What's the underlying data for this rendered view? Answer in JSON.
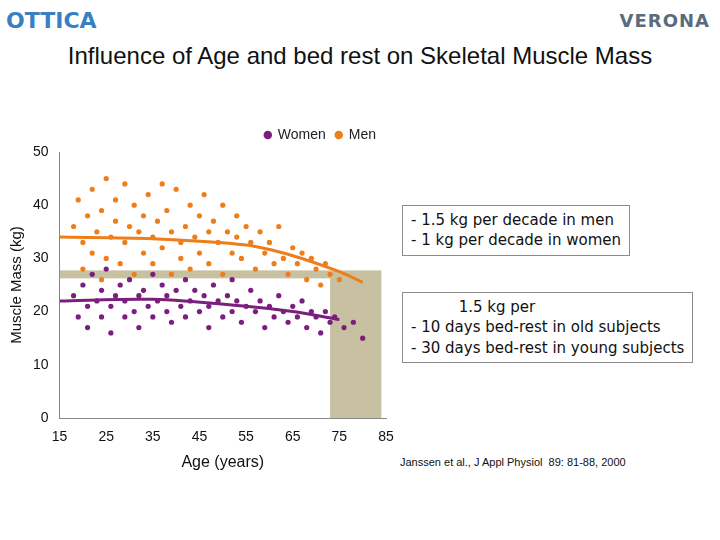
{
  "chart_data": {
    "type": "scatter",
    "title": "Influence of Age and bed rest on Skeletal Muscle Mass",
    "logos": [
      "OTTICA",
      "VERONA"
    ],
    "x_label": "Age (years)",
    "y_label": "Muscle Mass (kg)",
    "xlim": [
      15,
      85
    ],
    "xticks": [
      15,
      25,
      35,
      45,
      55,
      65,
      75,
      85
    ],
    "ylim": [
      0,
      50
    ],
    "yticks": [
      0,
      10,
      20,
      30,
      40,
      50
    ],
    "grid": false,
    "legend": "top-right",
    "marker": "circle",
    "series": [
      {
        "name": "Women",
        "color": "#7b1f7e",
        "x": [
          18,
          19,
          20,
          21,
          21,
          22,
          23,
          24,
          24,
          25,
          26,
          26,
          27,
          28,
          29,
          29,
          30,
          31,
          32,
          32,
          33,
          34,
          35,
          35,
          36,
          37,
          38,
          38,
          39,
          40,
          41,
          42,
          42,
          43,
          44,
          45,
          46,
          47,
          47,
          48,
          49,
          50,
          51,
          52,
          52,
          53,
          54,
          55,
          56,
          57,
          58,
          59,
          60,
          61,
          62,
          63,
          64,
          65,
          66,
          67,
          68,
          69,
          70,
          71,
          72,
          73,
          74,
          76,
          78,
          80
        ],
        "values": [
          23,
          19,
          25,
          21,
          17,
          27,
          22,
          19,
          24,
          28,
          21,
          16,
          23,
          25,
          19,
          22,
          26,
          20,
          23,
          17,
          24,
          21,
          27,
          19,
          22,
          25,
          20,
          23,
          18,
          24,
          21,
          26,
          19,
          22,
          24,
          20,
          23,
          17,
          21,
          25,
          22,
          19,
          23,
          20,
          26,
          22,
          18,
          21,
          24,
          20,
          22,
          17,
          21,
          19,
          23,
          20,
          18,
          21,
          19,
          22,
          17,
          20,
          19,
          16,
          20,
          18,
          19,
          17,
          18,
          15
        ],
        "trend": {
          "x": [
            15,
            35,
            55,
            65,
            75
          ],
          "values": [
            22,
            22.3,
            21,
            20,
            18.5
          ]
        }
      },
      {
        "name": "Men",
        "color": "#ee7d1c",
        "x": [
          18,
          19,
          20,
          20,
          21,
          22,
          22,
          23,
          24,
          24,
          25,
          25,
          26,
          27,
          27,
          28,
          29,
          29,
          30,
          31,
          31,
          32,
          33,
          33,
          34,
          35,
          35,
          36,
          37,
          37,
          38,
          39,
          39,
          40,
          41,
          41,
          42,
          43,
          43,
          44,
          45,
          45,
          46,
          47,
          47,
          48,
          49,
          50,
          50,
          51,
          52,
          53,
          53,
          54,
          55,
          56,
          57,
          58,
          59,
          60,
          61,
          62,
          63,
          64,
          65,
          66,
          67,
          68,
          69,
          70,
          71,
          72,
          73,
          75
        ],
        "values": [
          36,
          41,
          33,
          28,
          38,
          31,
          43,
          35,
          26,
          39,
          45,
          30,
          34,
          37,
          41,
          29,
          44,
          33,
          36,
          40,
          27,
          35,
          38,
          31,
          42,
          34,
          29,
          37,
          44,
          32,
          39,
          27,
          35,
          43,
          33,
          30,
          36,
          40,
          28,
          34,
          38,
          31,
          42,
          35,
          29,
          37,
          33,
          40,
          27,
          35,
          31,
          38,
          34,
          30,
          36,
          33,
          28,
          35,
          31,
          33,
          29,
          36,
          30,
          27,
          32,
          29,
          31,
          26,
          30,
          28,
          25,
          29,
          27,
          26
        ],
        "trend": {
          "x": [
            15,
            35,
            55,
            65,
            75,
            80
          ],
          "values": [
            34,
            33.7,
            32.5,
            30.5,
            27.5,
            25.5
          ]
        }
      }
    ],
    "highlight": {
      "y": 27,
      "x": [
        73,
        84
      ]
    },
    "annotations": [
      "- 1.5 kg per decade in men\n- 1 kg per decade in women",
      "          1.5 kg per\n- 10 days bed-rest in old subjects\n- 30 days bed-rest in young subjects"
    ],
    "source": "Janssen et al., J Appl Physiol  89: 81-88, 2000"
  }
}
